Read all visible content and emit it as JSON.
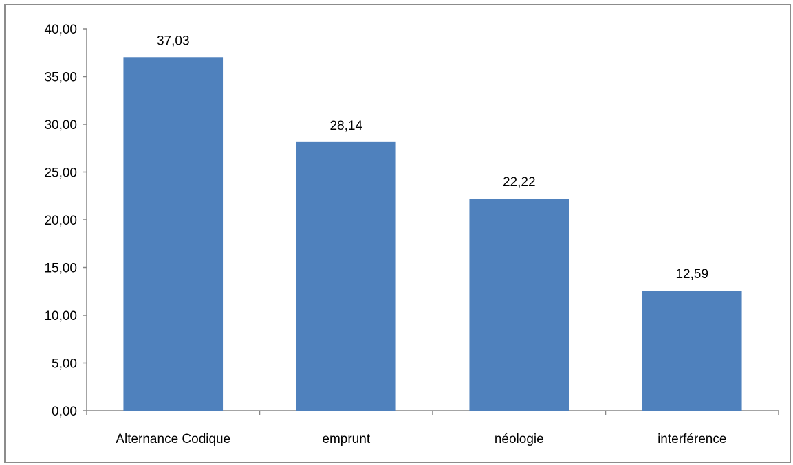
{
  "chart_data": {
    "type": "bar",
    "categories": [
      "Alternance Codique",
      "emprunt",
      "néologie",
      "interférence"
    ],
    "values": [
      37.03,
      28.14,
      22.22,
      12.59
    ],
    "data_labels": [
      "37,03",
      "28,14",
      "22,22",
      "12,59"
    ],
    "y_ticks": [
      0,
      5,
      10,
      15,
      20,
      25,
      30,
      35,
      40
    ],
    "y_tick_labels": [
      "0,00",
      "5,00",
      "10,00",
      "15,00",
      "20,00",
      "25,00",
      "30,00",
      "35,00",
      "40,00"
    ],
    "ylim": [
      0,
      40
    ],
    "title": "",
    "xlabel": "",
    "ylabel": "",
    "grid": false,
    "legend": "none",
    "colors": {
      "bar": "#4f81bd",
      "axis": "#868686",
      "frame": "#8c8c8c",
      "text": "#000000"
    }
  }
}
